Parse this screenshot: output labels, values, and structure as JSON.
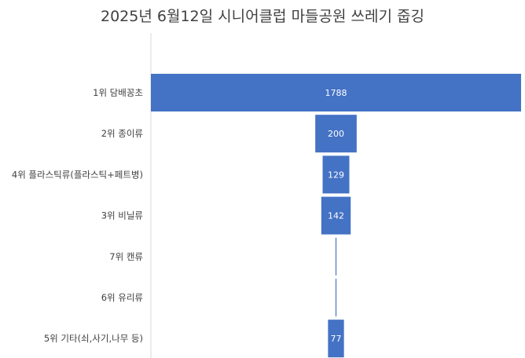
{
  "chart_data": {
    "type": "bar",
    "subtype": "funnel",
    "orientation": "horizontal",
    "title": "2025년 6월12일 시니어클럽 마들공원 쓰레기 줍깅",
    "categories": [
      "1위 담배꽁초",
      "2위 종이류",
      "4위 플라스틱류(플라스틱+페트병)",
      "3위 비닐류",
      "7위 캔류",
      "6위 유리류",
      "5위 기타(쇠,사기,나무 등)"
    ],
    "values": [
      1788,
      200,
      129,
      142,
      1,
      1,
      77
    ],
    "data_labels": [
      "1788",
      "200",
      "129",
      "142",
      "",
      "",
      "77"
    ],
    "xlim": [
      0,
      1788
    ],
    "legend": "none",
    "grid": false,
    "colors": {
      "bar": "#4472c4",
      "label": "#404040",
      "axis": "#d9d9d9"
    }
  }
}
